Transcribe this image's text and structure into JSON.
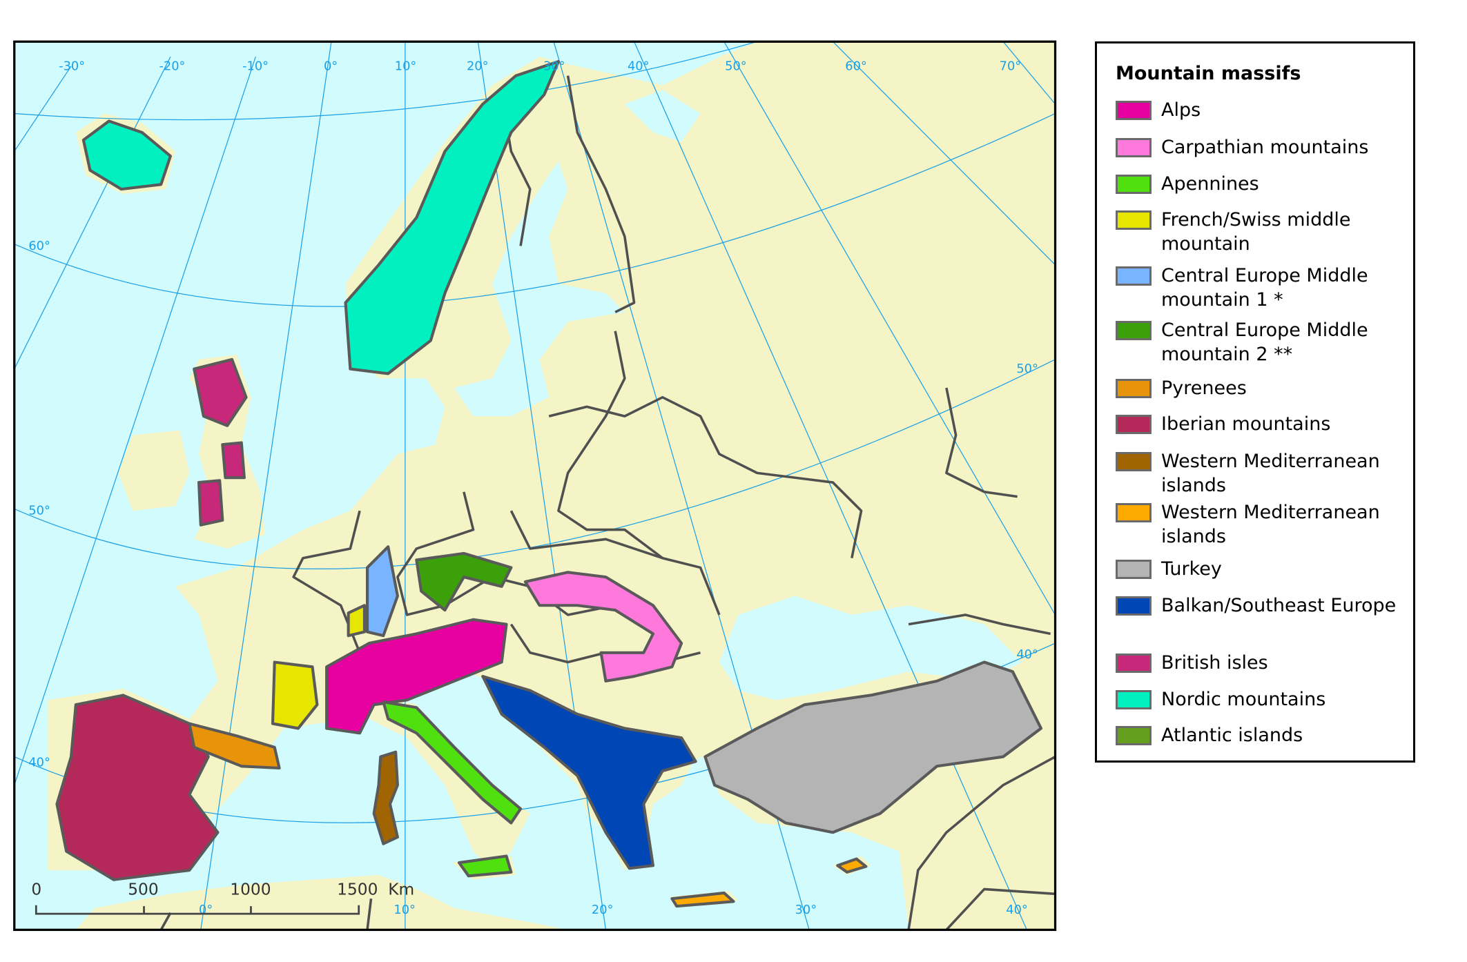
{
  "legend": {
    "title": "Mountain massifs",
    "items": [
      {
        "label": "Alps",
        "color": "#e600a0"
      },
      {
        "label": "Carpathian mountains",
        "color": "#ff78dc"
      },
      {
        "label": "Apennines",
        "color": "#50e010"
      },
      {
        "label": "French/Swiss middle mountain",
        "color": "#e6e600"
      },
      {
        "label": "Central Europe Middle mountain 1 *",
        "color": "#78b4ff"
      },
      {
        "label": "Central Europe Middle mountain 2 **",
        "color": "#3ca00a"
      },
      {
        "label": "Pyrenees",
        "color": "#e8940a"
      },
      {
        "label": "Iberian mountains",
        "color": "#b4285a"
      },
      {
        "label": "Western Mediterranean islands",
        "color": "#a06400"
      },
      {
        "label": "Western Mediterranean islands",
        "color": "#ffaa00"
      },
      {
        "label": "Turkey",
        "color": "#b4b4b4"
      },
      {
        "label": "Balkan/Southeast Europe",
        "color": "#0046b4"
      },
      {
        "label": "British isles",
        "color": "#c8287a"
      },
      {
        "label": "Nordic mountains",
        "color": "#00f0c0"
      },
      {
        "label": "Atlantic islands",
        "color": "#64a01e"
      }
    ]
  },
  "graticule": {
    "top_labels": [
      "-30°",
      "-20°",
      "-10°",
      "0°",
      "10°",
      "20°",
      "30°",
      "40°",
      "50°",
      "60°",
      "70°"
    ],
    "left_labels": [
      "60°",
      "50°",
      "40°"
    ],
    "right_labels": [
      "50°",
      "40°"
    ],
    "bottom_labels": [
      "0°",
      "10°",
      "20°",
      "30°",
      "40°"
    ]
  },
  "scale_bar": {
    "labels": [
      "0",
      "500",
      "1000",
      "1500"
    ],
    "unit": "Km"
  },
  "colors": {
    "sea": "#d2fbfd",
    "land": "#f4f4c6",
    "graticule": "#1aa0e8",
    "borders": "#505050"
  }
}
